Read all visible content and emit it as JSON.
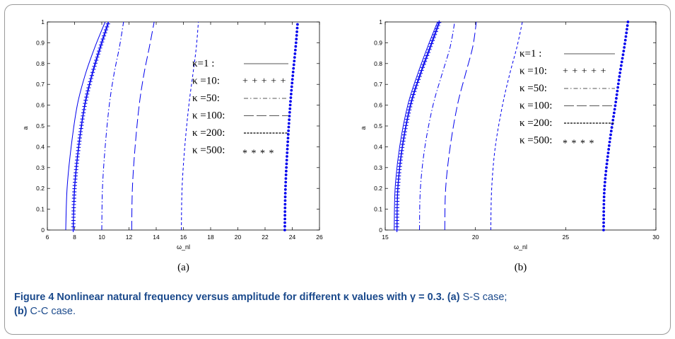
{
  "chart_data": [
    {
      "type": "line",
      "panel_label": "(a)",
      "xlabel": "ω_nl",
      "ylabel": "a",
      "xlim": [
        6,
        26
      ],
      "ylim": [
        0,
        1
      ],
      "xticks": [
        6,
        8,
        10,
        12,
        14,
        16,
        18,
        20,
        22,
        24,
        26
      ],
      "yticks": [
        0,
        0.1,
        0.2,
        0.3,
        0.4,
        0.5,
        0.6,
        0.7,
        0.8,
        0.9,
        1
      ],
      "legend": [
        {
          "label": "κ=1  :",
          "style": "solid"
        },
        {
          "label": "κ =10:",
          "style": "plus",
          "marker_text": "+ + + + +"
        },
        {
          "label": "κ =50:",
          "style": "dashdot"
        },
        {
          "label": "κ =100:",
          "style": "longdash"
        },
        {
          "label": "κ =200:",
          "style": "dashed"
        },
        {
          "label": "κ =500:",
          "style": "dotted",
          "marker_text": "* * * *"
        }
      ],
      "series": [
        {
          "style": "solid",
          "x": [
            7.35,
            7.45,
            7.75,
            8.2,
            8.8,
            9.5,
            10.25
          ],
          "y": [
            0,
            0.2,
            0.4,
            0.6,
            0.75,
            0.88,
            1.0
          ]
        },
        {
          "style": "plus",
          "x": [
            7.9,
            8.0,
            8.3,
            8.75,
            9.3,
            9.9,
            10.5
          ],
          "y": [
            0,
            0.2,
            0.4,
            0.6,
            0.75,
            0.88,
            1.0
          ]
        },
        {
          "style": "dashdot",
          "x": [
            10.0,
            10.05,
            10.25,
            10.55,
            10.9,
            11.3,
            11.6
          ],
          "y": [
            0,
            0.2,
            0.4,
            0.6,
            0.75,
            0.88,
            1.0
          ]
        },
        {
          "style": "longdash",
          "x": [
            12.2,
            12.25,
            12.45,
            12.75,
            13.1,
            13.5,
            13.85
          ],
          "y": [
            0,
            0.2,
            0.4,
            0.6,
            0.75,
            0.88,
            1.0
          ]
        },
        {
          "style": "dashed",
          "x": [
            15.85,
            15.9,
            16.1,
            16.4,
            16.7,
            16.95,
            17.1
          ],
          "y": [
            0,
            0.2,
            0.4,
            0.6,
            0.75,
            0.88,
            1.0
          ]
        },
        {
          "style": "dotted",
          "x": [
            23.45,
            23.5,
            23.65,
            23.85,
            24.05,
            24.25,
            24.4
          ],
          "y": [
            0,
            0.2,
            0.4,
            0.6,
            0.75,
            0.88,
            1.0
          ]
        }
      ]
    },
    {
      "type": "line",
      "panel_label": "(b)",
      "xlabel": "ω_nl",
      "ylabel": "a",
      "xlim": [
        15,
        30
      ],
      "ylim": [
        0,
        1
      ],
      "xticks": [
        15,
        20,
        25,
        30
      ],
      "yticks": [
        0,
        0.1,
        0.2,
        0.3,
        0.4,
        0.5,
        0.6,
        0.7,
        0.8,
        0.9,
        1
      ],
      "legend": [
        {
          "label": "κ=1  :",
          "style": "solid"
        },
        {
          "label": "κ =10:",
          "style": "plus",
          "marker_text": "+ + + + +"
        },
        {
          "label": "κ =50:",
          "style": "dashdot"
        },
        {
          "label": "κ =100:",
          "style": "longdash"
        },
        {
          "label": "κ =200:",
          "style": "dashed"
        },
        {
          "label": "κ =500:",
          "style": "dotted",
          "marker_text": "* * * *"
        }
      ],
      "series": [
        {
          "style": "solid",
          "x": [
            15.5,
            15.55,
            15.8,
            16.25,
            16.8,
            17.35,
            17.9
          ],
          "y": [
            0,
            0.2,
            0.4,
            0.6,
            0.75,
            0.88,
            1.0
          ]
        },
        {
          "style": "plus",
          "x": [
            15.65,
            15.7,
            15.95,
            16.4,
            16.95,
            17.5,
            18.0
          ],
          "y": [
            0,
            0.2,
            0.4,
            0.6,
            0.75,
            0.88,
            1.0
          ]
        },
        {
          "style": "dashdot",
          "x": [
            16.9,
            16.95,
            17.2,
            17.65,
            18.15,
            18.6,
            18.85
          ],
          "y": [
            0,
            0.2,
            0.4,
            0.6,
            0.75,
            0.88,
            1.0
          ]
        },
        {
          "style": "longdash",
          "x": [
            18.3,
            18.35,
            18.6,
            19.0,
            19.45,
            19.85,
            20.05
          ],
          "y": [
            0,
            0.2,
            0.4,
            0.6,
            0.75,
            0.88,
            1.0
          ]
        },
        {
          "style": "dashed",
          "x": [
            20.85,
            20.9,
            21.1,
            21.5,
            21.9,
            22.3,
            22.6
          ],
          "y": [
            0,
            0.2,
            0.4,
            0.6,
            0.75,
            0.88,
            1.0
          ]
        },
        {
          "style": "dotted",
          "x": [
            27.1,
            27.15,
            27.4,
            27.75,
            28.0,
            28.25,
            28.45
          ],
          "y": [
            0,
            0.2,
            0.4,
            0.6,
            0.75,
            0.88,
            1.0
          ]
        }
      ]
    }
  ],
  "caption": {
    "title": "Figure 4  Nonlinear natural frequency versus amplitude for different κ values with γ = 0.3.",
    "part_a_label": "(a)",
    "part_a_text": " S-S case;",
    "part_b_label": "(b)",
    "part_b_text": " C-C case."
  },
  "colors": {
    "series": "#0000ee",
    "legend_line": "#555555",
    "axis": "#000000",
    "caption": "#1b4a8c"
  }
}
